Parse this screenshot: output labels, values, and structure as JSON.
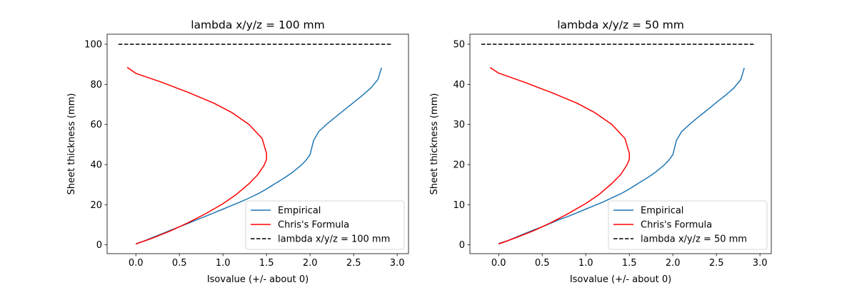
{
  "chart_data": [
    {
      "type": "line",
      "title": "lambda x/y/z = 100 mm",
      "xlabel": "Isovalue (+/- about 0)",
      "ylabel": "Sheet thickness (mm)",
      "xlim": [
        -0.33,
        3.13
      ],
      "ylim": [
        -4.4,
        105
      ],
      "xticks": [
        0.0,
        0.5,
        1.0,
        1.5,
        2.0,
        2.5,
        3.0
      ],
      "xtick_labels": [
        "0.0",
        "0.5",
        "1.0",
        "1.5",
        "2.0",
        "2.5",
        "3.0"
      ],
      "yticks": [
        0,
        20,
        40,
        60,
        80,
        100
      ],
      "ytick_labels": [
        "0",
        "20",
        "40",
        "60",
        "80",
        "100"
      ],
      "grid": false,
      "legend_position": "lower right",
      "series": [
        {
          "name": "Empirical",
          "color": "#1f77b4",
          "style": "solid",
          "x": [
            0.0,
            0.1,
            0.2,
            0.3,
            0.4,
            0.5,
            0.6,
            0.7,
            0.8,
            0.9,
            1.0,
            1.1,
            1.2,
            1.3,
            1.4,
            1.5,
            1.6,
            1.7,
            1.8,
            1.9,
            1.95,
            2.0,
            2.04,
            2.1,
            2.2,
            2.3,
            2.4,
            2.5,
            2.6,
            2.7,
            2.78,
            2.82
          ],
          "y": [
            0.5,
            2.0,
            3.8,
            5.5,
            7.3,
            9.0,
            10.7,
            12.5,
            14.2,
            16.0,
            17.8,
            19.6,
            21.4,
            23.3,
            25.4,
            27.8,
            30.6,
            33.2,
            36.2,
            39.8,
            42.0,
            45.0,
            52.0,
            56.5,
            60.5,
            64.0,
            67.5,
            71.0,
            74.5,
            78.3,
            82.5,
            88.3
          ]
        },
        {
          "name": "Chris's Formula",
          "color": "#ff0000",
          "style": "solid",
          "x": [
            0.0,
            0.2,
            0.4,
            0.6,
            0.8,
            1.0,
            1.15,
            1.3,
            1.4,
            1.47,
            1.5,
            1.5,
            1.45,
            1.3,
            1.1,
            0.9,
            0.6,
            0.3,
            0.0,
            -0.1
          ],
          "y": [
            0.4,
            3.5,
            7.0,
            11.0,
            15.5,
            20.5,
            25.0,
            30.5,
            35.0,
            39.5,
            42.5,
            45.5,
            53.0,
            60.0,
            66.0,
            70.5,
            76.0,
            81.0,
            85.5,
            88.5
          ]
        },
        {
          "name": "lambda x/y/z = 100 mm",
          "color": "#000000",
          "style": "dashed",
          "x": [
            -0.2,
            2.95
          ],
          "y": [
            100,
            100
          ]
        }
      ]
    },
    {
      "type": "line",
      "title": "lambda x/y/z = 50 mm",
      "xlabel": "Isovalue (+/- about 0)",
      "ylabel": "Sheet thickness (mm)",
      "xlim": [
        -0.33,
        3.13
      ],
      "ylim": [
        -2.2,
        52.5
      ],
      "xticks": [
        0.0,
        0.5,
        1.0,
        1.5,
        2.0,
        2.5,
        3.0
      ],
      "xtick_labels": [
        "0.0",
        "0.5",
        "1.0",
        "1.5",
        "2.0",
        "2.5",
        "3.0"
      ],
      "yticks": [
        0,
        10,
        20,
        30,
        40,
        50
      ],
      "ytick_labels": [
        "0",
        "10",
        "20",
        "30",
        "40",
        "50"
      ],
      "grid": false,
      "legend_position": "lower right",
      "series": [
        {
          "name": "Empirical",
          "color": "#1f77b4",
          "style": "solid",
          "x": [
            0.0,
            0.1,
            0.2,
            0.3,
            0.4,
            0.5,
            0.6,
            0.7,
            0.8,
            0.9,
            1.0,
            1.1,
            1.2,
            1.3,
            1.4,
            1.5,
            1.6,
            1.7,
            1.8,
            1.9,
            1.95,
            2.0,
            2.04,
            2.1,
            2.2,
            2.3,
            2.4,
            2.5,
            2.6,
            2.7,
            2.78,
            2.82
          ],
          "y": [
            0.3,
            1.0,
            1.9,
            2.8,
            3.7,
            4.5,
            5.4,
            6.3,
            7.1,
            8.0,
            8.9,
            9.8,
            10.7,
            11.7,
            12.7,
            13.9,
            15.3,
            16.6,
            18.1,
            19.9,
            21.0,
            22.5,
            26.0,
            28.2,
            30.2,
            32.0,
            33.7,
            35.5,
            37.2,
            39.1,
            41.2,
            44.1
          ]
        },
        {
          "name": "Chris's Formula",
          "color": "#ff0000",
          "style": "solid",
          "x": [
            0.0,
            0.2,
            0.4,
            0.6,
            0.8,
            1.0,
            1.15,
            1.3,
            1.4,
            1.47,
            1.5,
            1.5,
            1.45,
            1.3,
            1.1,
            0.9,
            0.6,
            0.3,
            0.0,
            -0.1
          ],
          "y": [
            0.2,
            1.8,
            3.5,
            5.5,
            7.8,
            10.3,
            12.5,
            15.3,
            17.5,
            19.8,
            21.3,
            22.8,
            26.5,
            30.0,
            33.0,
            35.3,
            38.0,
            40.5,
            42.8,
            44.2
          ]
        },
        {
          "name": "lambda x/y/z = 50 mm",
          "color": "#000000",
          "style": "dashed",
          "x": [
            -0.2,
            2.95
          ],
          "y": [
            50,
            50
          ]
        }
      ]
    }
  ]
}
